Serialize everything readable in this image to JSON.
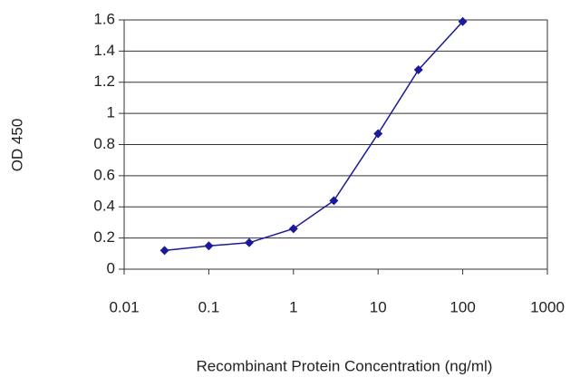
{
  "chart_data": {
    "type": "line",
    "x_label": "Recombinant Protein Concentration (ng/ml)",
    "y_label": "OD 450",
    "x": [
      0.03,
      0.1,
      0.3,
      1,
      3,
      10,
      30,
      100
    ],
    "series": [
      {
        "color": "#1a1a9c",
        "values": [
          0.12,
          0.15,
          0.17,
          0.26,
          0.44,
          0.87,
          1.28,
          1.59
        ]
      }
    ],
    "xscale": "log",
    "xlim": [
      0.01,
      1000
    ],
    "xticks": [
      0.01,
      0.1,
      1,
      10,
      100,
      1000
    ],
    "ylim": [
      0,
      1.6
    ],
    "yticks": [
      0,
      0.2,
      0.4,
      0.6,
      0.8,
      1,
      1.2,
      1.4,
      1.6
    ],
    "grid": true
  }
}
